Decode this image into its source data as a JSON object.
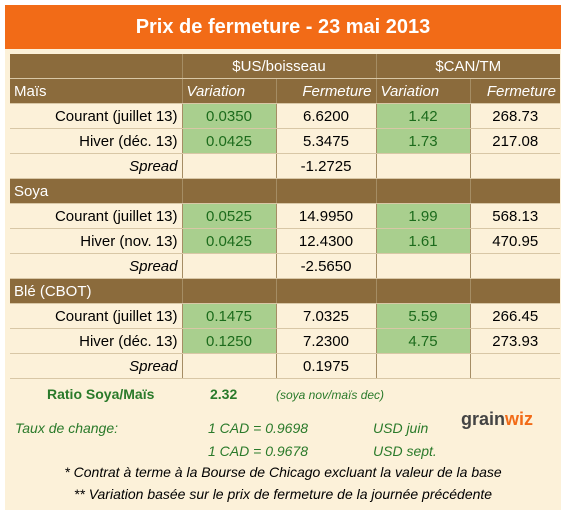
{
  "title": "Prix de fermeture - 23 mai 2013",
  "headers": {
    "usd": "$US/boisseau",
    "cad": "$CAN/TM",
    "variation": "Variation",
    "fermeture": "Fermeture"
  },
  "sections": [
    {
      "name": "Maïs",
      "rows": [
        {
          "label": "Courant (juillet 13)",
          "us_var": "0.0350",
          "us_close": "6.6200",
          "cad_var": "1.42",
          "cad_close": "268.73"
        },
        {
          "label": "Hiver (déc. 13)",
          "us_var": "0.0425",
          "us_close": "5.3475",
          "cad_var": "1.73",
          "cad_close": "217.08"
        }
      ],
      "spread_label": "Spread",
      "spread": "-1.2725"
    },
    {
      "name": "Soya",
      "rows": [
        {
          "label": "Courant (juillet 13)",
          "us_var": "0.0525",
          "us_close": "14.9950",
          "cad_var": "1.99",
          "cad_close": "568.13"
        },
        {
          "label": "Hiver (nov. 13)",
          "us_var": "0.0425",
          "us_close": "12.4300",
          "cad_var": "1.61",
          "cad_close": "470.95"
        }
      ],
      "spread_label": "Spread",
      "spread": "-2.5650"
    },
    {
      "name": "Blé (CBOT)",
      "rows": [
        {
          "label": "Courant (juillet 13)",
          "us_var": "0.1475",
          "us_close": "7.0325",
          "cad_var": "5.59",
          "cad_close": "266.45"
        },
        {
          "label": "Hiver (déc. 13)",
          "us_var": "0.1250",
          "us_close": "7.2300",
          "cad_var": "4.75",
          "cad_close": "273.93"
        }
      ],
      "spread_label": "Spread",
      "spread": "0.1975"
    }
  ],
  "ratio": {
    "label": "Ratio Soya/Maïs",
    "value": "2.32",
    "note": "(soya nov/maïs dec)"
  },
  "fx": {
    "label": "Taux de change:",
    "rate1": "1 CAD =  0.9698",
    "unit1": "USD juin",
    "rate2": "1 CAD =  0.9678",
    "unit2": "USD sept."
  },
  "notes": [
    "* Contrat à terme à la Bourse de Chicago excluant la valeur de la base",
    "** Variation basée sur le prix de fermeture de la journée précédente"
  ],
  "logo": {
    "text_a": "grain",
    "text_b": "wiz"
  },
  "colors": {
    "title_bg": "#f26b17",
    "header_bg": "#8b6b3c",
    "variation_bg": "#a9cf8e",
    "panel_bg": "#fcf1d9"
  }
}
